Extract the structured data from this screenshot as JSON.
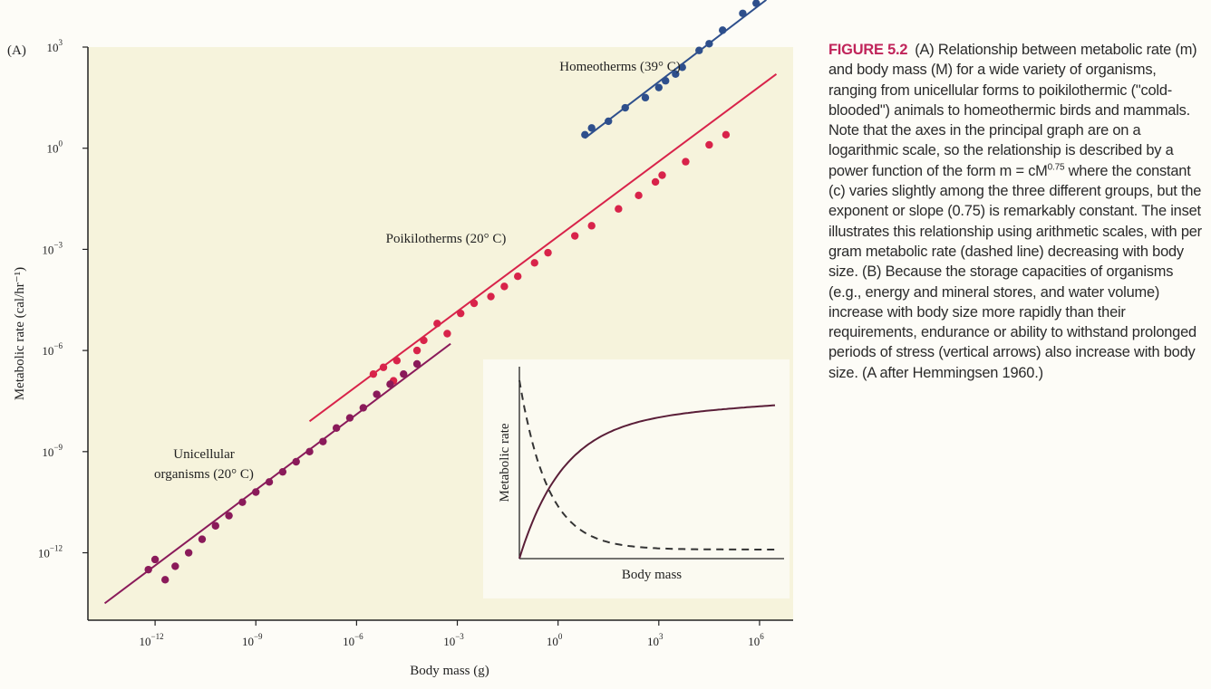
{
  "panel_label": "(A)",
  "chart_data": {
    "type": "scatter",
    "xscale": "log",
    "yscale": "log",
    "xlabel": "Body mass (g)",
    "ylabel": "Metabolic rate (cal/hr⁻¹)",
    "xlim": [
      1e-14,
      10000000.0
    ],
    "ylim": [
      1e-14,
      1000.0
    ],
    "x_ticks": [
      {
        "value": 1e-12,
        "base": "10",
        "exp": "−12"
      },
      {
        "value": 1e-09,
        "base": "10",
        "exp": "−9"
      },
      {
        "value": 1e-06,
        "base": "10",
        "exp": "−6"
      },
      {
        "value": 0.001,
        "base": "10",
        "exp": "−3"
      },
      {
        "value": 1,
        "base": "10",
        "exp": "0"
      },
      {
        "value": 1000.0,
        "base": "10",
        "exp": "3"
      },
      {
        "value": 1000000.0,
        "base": "10",
        "exp": "6"
      }
    ],
    "y_ticks": [
      {
        "value": 1e-12,
        "base": "10",
        "exp": "−12"
      },
      {
        "value": 1e-09,
        "base": "10",
        "exp": "−9"
      },
      {
        "value": 1e-06,
        "base": "10",
        "exp": "−6"
      },
      {
        "value": 0.001,
        "base": "10",
        "exp": "−3"
      },
      {
        "value": 1,
        "base": "10",
        "exp": "0"
      },
      {
        "value": 1000.0,
        "base": "10",
        "exp": "3"
      }
    ],
    "grid": false,
    "series": [
      {
        "name": "Homeotherms (39° C)",
        "color": "#2e4f8c",
        "points_log10": [
          [
            0.8,
            0.4
          ],
          [
            1.0,
            0.6
          ],
          [
            1.5,
            0.8
          ],
          [
            2.0,
            1.2
          ],
          [
            2.6,
            1.5
          ],
          [
            3.0,
            1.8
          ],
          [
            3.2,
            2.0
          ],
          [
            3.5,
            2.2
          ],
          [
            3.7,
            2.4
          ],
          [
            4.2,
            2.9
          ],
          [
            4.5,
            3.1
          ],
          [
            4.9,
            3.5
          ],
          [
            5.5,
            4.0
          ],
          [
            5.9,
            4.3
          ],
          [
            6.3,
            4.6
          ],
          [
            6.7,
            4.9
          ],
          [
            7.2,
            5.3
          ]
        ],
        "fit_log10": [
          [
            0.8,
            0.3
          ],
          [
            6.2,
            4.4
          ]
        ]
      },
      {
        "name": "Poikilotherms (20° C)",
        "color": "#d8234a",
        "points_log10": [
          [
            -5.5,
            -6.7
          ],
          [
            -5.2,
            -6.5
          ],
          [
            -4.9,
            -6.9
          ],
          [
            -4.8,
            -6.3
          ],
          [
            -4.2,
            -6.0
          ],
          [
            -4.0,
            -5.7
          ],
          [
            -3.6,
            -5.2
          ],
          [
            -3.3,
            -5.5
          ],
          [
            -2.9,
            -4.9
          ],
          [
            -2.5,
            -4.6
          ],
          [
            -2.0,
            -4.4
          ],
          [
            -1.6,
            -4.1
          ],
          [
            -1.2,
            -3.8
          ],
          [
            -0.7,
            -3.4
          ],
          [
            -0.3,
            -3.1
          ],
          [
            0.5,
            -2.6
          ],
          [
            1.0,
            -2.3
          ],
          [
            1.8,
            -1.8
          ],
          [
            2.4,
            -1.4
          ],
          [
            2.9,
            -1.0
          ],
          [
            3.1,
            -0.8
          ],
          [
            3.8,
            -0.4
          ],
          [
            4.5,
            0.1
          ],
          [
            5.0,
            0.4
          ]
        ],
        "fit_log10": [
          [
            -7.4,
            -8.1
          ],
          [
            6.5,
            2.2
          ]
        ]
      },
      {
        "name": "Unicellular organisms (20° C)",
        "color": "#8a1a5a",
        "points_log10": [
          [
            -12.2,
            -12.5
          ],
          [
            -12.0,
            -12.2
          ],
          [
            -11.7,
            -12.8
          ],
          [
            -11.4,
            -12.4
          ],
          [
            -11.0,
            -12.0
          ],
          [
            -10.6,
            -11.6
          ],
          [
            -10.2,
            -11.2
          ],
          [
            -9.8,
            -10.9
          ],
          [
            -9.4,
            -10.5
          ],
          [
            -9.0,
            -10.2
          ],
          [
            -8.6,
            -9.9
          ],
          [
            -8.2,
            -9.6
          ],
          [
            -7.8,
            -9.3
          ],
          [
            -7.4,
            -9.0
          ],
          [
            -7.0,
            -8.7
          ],
          [
            -6.6,
            -8.3
          ],
          [
            -6.2,
            -8.0
          ],
          [
            -5.8,
            -7.7
          ],
          [
            -5.4,
            -7.3
          ],
          [
            -5.0,
            -7.0
          ],
          [
            -4.6,
            -6.7
          ],
          [
            -4.2,
            -6.4
          ]
        ],
        "fit_log10": [
          [
            -13.5,
            -13.5
          ],
          [
            -3.2,
            -5.8
          ]
        ]
      }
    ],
    "inset": {
      "xlabel": "Body mass",
      "ylabel": "Metabolic rate",
      "curves": [
        {
          "style": "solid",
          "color": "#5a1e38",
          "shape": "saturating"
        },
        {
          "style": "dashed",
          "color": "#333333",
          "shape": "decreasing"
        }
      ]
    }
  },
  "caption": {
    "figure_label": "FIGURE 5.2",
    "text_before_formula": "(A) Relationship between metabolic rate (m) and body mass (M) for a wide variety of organisms, ranging from unicellular forms to poikilothermic (\"cold-blooded\") animals to homeothermic birds and mammals. Note that the axes in the principal graph are on a logarithmic scale, so the relationship is described by a power function of the form m = cM",
    "exponent": "0.75",
    "text_after_formula": " where the constant (c) varies slightly among the three different groups, but the exponent or slope (0.75) is remarkably constant. The inset illustrates this relationship using arithmetic scales, with per gram metabolic rate (dashed line) decreasing with body size. (B) Because the storage capacities of organisms (e.g., energy and mineral stores, and water volume) increase with body size more rapidly than their requirements, endurance or ability to withstand prolonged periods of stress (vertical arrows) also increase with body size. (A after Hemmingsen 1960.)"
  }
}
